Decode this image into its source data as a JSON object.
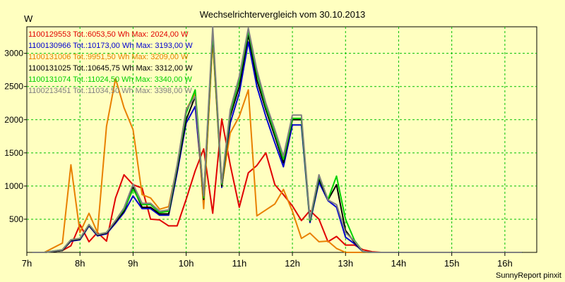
{
  "chart_data": {
    "type": "line",
    "title": "Wechselrichtervergleich vom 30.10.2013",
    "ylabel": "W",
    "xlabel": "",
    "xlim": [
      7,
      16.6
    ],
    "ylim": [
      0,
      3400
    ],
    "yticks": [
      500,
      1000,
      1500,
      2000,
      2500,
      3000
    ],
    "xticks": [
      7,
      8,
      9,
      10,
      11,
      12,
      13,
      14,
      15,
      16
    ],
    "xtick_labels": [
      "7h",
      "8h",
      "9h",
      "10h",
      "11h",
      "12h",
      "13h",
      "14h",
      "15h",
      "16h"
    ],
    "grid": true,
    "legend_position": "top-left",
    "credit": "SunnyReport pinxit",
    "series": [
      {
        "name": "1100129553 Tot.:6053,50 Wh Max: 2024,00 W",
        "color": "#e00000",
        "x": [
          7.1,
          7.33,
          7.67,
          7.83,
          8.0,
          8.17,
          8.33,
          8.5,
          8.67,
          8.83,
          9.0,
          9.17,
          9.33,
          9.5,
          9.67,
          9.83,
          10.0,
          10.17,
          10.33,
          10.5,
          10.67,
          10.83,
          11.0,
          11.17,
          11.33,
          11.5,
          11.67,
          11.83,
          12.0,
          12.17,
          12.33,
          12.5,
          12.67,
          12.83,
          13.0,
          13.17,
          13.33,
          13.5,
          13.67,
          13.83,
          14.0,
          14.17,
          14.33,
          14.5,
          14.67,
          14.83,
          15.0,
          15.17,
          15.33,
          15.5,
          15.67,
          15.83,
          16.0,
          16.17,
          16.33
        ],
        "y": [
          0,
          0,
          30,
          100,
          420,
          160,
          300,
          170,
          820,
          1170,
          1020,
          970,
          500,
          490,
          400,
          400,
          800,
          1230,
          1560,
          590,
          2010,
          1320,
          680,
          1200,
          1310,
          1500,
          1020,
          870,
          700,
          480,
          630,
          500,
          160,
          240,
          110,
          110,
          40,
          10,
          0,
          0,
          0,
          0,
          0,
          0,
          0,
          0,
          0,
          0,
          0,
          0,
          0,
          0,
          0,
          0,
          0
        ]
      },
      {
        "name": "1100130966 Tot.:10173,00 Wh Max: 3193,00 W",
        "color": "#0000d0",
        "x": [
          7.1,
          7.33,
          7.67,
          7.83,
          8.0,
          8.17,
          8.33,
          8.5,
          8.67,
          8.83,
          9.0,
          9.17,
          9.33,
          9.5,
          9.67,
          9.83,
          10.0,
          10.17,
          10.33,
          10.5,
          10.67,
          10.83,
          11.0,
          11.17,
          11.33,
          11.5,
          11.67,
          11.83,
          12.0,
          12.17,
          12.33,
          12.5,
          12.67,
          12.83,
          13.0,
          13.17,
          13.33,
          13.5,
          13.67,
          13.83,
          14.0,
          14.17,
          14.33,
          14.5,
          14.67,
          14.83,
          15.0,
          15.17,
          15.33,
          15.5,
          15.67,
          15.83,
          16.0,
          16.17,
          16.33
        ],
        "y": [
          0,
          0,
          30,
          170,
          190,
          400,
          250,
          280,
          440,
          600,
          850,
          660,
          660,
          560,
          560,
          1200,
          1950,
          2200,
          790,
          3250,
          980,
          1950,
          2400,
          3170,
          2500,
          2050,
          1650,
          1290,
          1920,
          1920,
          450,
          1060,
          780,
          680,
          230,
          130,
          10,
          0,
          0,
          0,
          0,
          0,
          0,
          0,
          0,
          0,
          0,
          0,
          0,
          0,
          0,
          0,
          0,
          0,
          0
        ]
      },
      {
        "name": "1100131006 Tot.:9951,50 Wh Max: 3209,00 W",
        "color": "#e88000",
        "x": [
          7.1,
          7.33,
          7.67,
          7.83,
          8.0,
          8.17,
          8.33,
          8.5,
          8.67,
          8.83,
          9.0,
          9.17,
          9.33,
          9.5,
          9.67,
          9.83,
          10.0,
          10.17,
          10.33,
          10.5,
          10.67,
          10.83,
          11.0,
          11.17,
          11.33,
          11.5,
          11.67,
          11.83,
          12.0,
          12.17,
          12.33,
          12.5,
          12.67,
          12.83,
          13.0,
          13.17,
          13.33,
          13.5,
          13.67,
          13.83,
          14.0,
          14.17,
          14.33,
          14.5,
          14.67,
          14.83,
          15.0,
          15.17,
          15.33,
          15.5,
          15.67,
          15.83,
          16.0,
          16.17,
          16.33
        ],
        "y": [
          0,
          0,
          140,
          1320,
          300,
          590,
          300,
          1900,
          2620,
          2180,
          1850,
          870,
          820,
          650,
          690,
          1300,
          2150,
          2400,
          660,
          3200,
          1000,
          1800,
          2050,
          2450,
          550,
          640,
          730,
          950,
          620,
          210,
          290,
          160,
          170,
          60,
          0,
          0,
          0,
          0,
          0,
          0,
          0,
          0,
          0,
          0,
          0,
          0,
          0,
          0,
          0,
          0,
          0,
          0,
          0,
          0,
          0
        ]
      },
      {
        "name": "1100131025 Tot.:10645,75 Wh Max: 3312,00 W",
        "color": "#000000",
        "x": [
          7.1,
          7.33,
          7.67,
          7.83,
          8.0,
          8.17,
          8.33,
          8.5,
          8.67,
          8.83,
          9.0,
          9.17,
          9.33,
          9.5,
          9.67,
          9.83,
          10.0,
          10.17,
          10.33,
          10.5,
          10.67,
          10.83,
          11.0,
          11.17,
          11.33,
          11.5,
          11.67,
          11.83,
          12.0,
          12.17,
          12.33,
          12.5,
          12.67,
          12.83,
          13.0,
          13.17,
          13.33,
          13.5,
          13.67,
          13.83,
          14.0,
          14.17,
          14.33,
          14.5,
          14.67,
          14.83,
          15.0,
          15.17,
          15.33,
          15.5,
          15.67,
          15.83,
          16.0,
          16.17,
          16.33
        ],
        "y": [
          0,
          0,
          30,
          180,
          200,
          410,
          260,
          290,
          460,
          620,
          980,
          680,
          680,
          580,
          580,
          1250,
          2000,
          2350,
          800,
          3300,
          1000,
          2050,
          2500,
          3280,
          2600,
          2150,
          1750,
          1350,
          2000,
          2000,
          470,
          1110,
          790,
          1020,
          330,
          150,
          10,
          0,
          0,
          0,
          0,
          0,
          0,
          0,
          0,
          0,
          0,
          0,
          0,
          0,
          0,
          0,
          0,
          0,
          0
        ]
      },
      {
        "name": "1100131074 Tot.:11024,50 Wh Max: 3340,00 W",
        "color": "#00d000",
        "x": [
          7.1,
          7.33,
          7.67,
          7.83,
          8.0,
          8.17,
          8.33,
          8.5,
          8.67,
          8.83,
          9.0,
          9.17,
          9.33,
          9.5,
          9.67,
          9.83,
          10.0,
          10.17,
          10.33,
          10.5,
          10.67,
          10.83,
          11.0,
          11.17,
          11.33,
          11.5,
          11.67,
          11.83,
          12.0,
          12.17,
          12.33,
          12.5,
          12.67,
          12.83,
          13.0,
          13.17,
          13.33,
          13.5,
          13.67,
          13.83,
          14.0,
          14.17,
          14.33,
          14.5,
          14.67,
          14.83,
          15.0,
          15.17,
          15.33,
          15.5,
          15.67,
          15.83,
          16.0,
          16.17,
          16.33
        ],
        "y": [
          0,
          0,
          40,
          190,
          210,
          420,
          270,
          300,
          480,
          650,
          950,
          720,
          720,
          600,
          620,
          1300,
          2100,
          2450,
          820,
          3330,
          1030,
          2100,
          2600,
          3340,
          2700,
          2200,
          1800,
          1400,
          2020,
          2020,
          480,
          1150,
          800,
          1150,
          500,
          180,
          10,
          0,
          0,
          0,
          0,
          0,
          0,
          0,
          0,
          0,
          0,
          0,
          0,
          0,
          0,
          0,
          0,
          0,
          0
        ]
      },
      {
        "name": "1100213451 Tot.:11034,50 Wh Max: 3398,00 W",
        "color": "#808080",
        "x": [
          7.1,
          7.33,
          7.67,
          7.83,
          8.0,
          8.17,
          8.33,
          8.5,
          8.67,
          8.83,
          9.0,
          9.17,
          9.33,
          9.5,
          9.67,
          9.83,
          10.0,
          10.17,
          10.33,
          10.5,
          10.67,
          10.83,
          11.0,
          11.17,
          11.33,
          11.5,
          11.67,
          11.83,
          12.0,
          12.17,
          12.33,
          12.5,
          12.67,
          12.83,
          13.0,
          13.17,
          13.33,
          13.5,
          13.67,
          13.83,
          14.0,
          14.17,
          14.33,
          14.5,
          14.67,
          14.83,
          15.0,
          15.17,
          15.33,
          15.5,
          15.67,
          15.83,
          16.0,
          16.17,
          16.33
        ],
        "y": [
          0,
          0,
          40,
          190,
          210,
          420,
          270,
          300,
          480,
          670,
          1030,
          740,
          740,
          620,
          640,
          1320,
          2150,
          2350,
          850,
          3400,
          1050,
          2150,
          2650,
          3380,
          2750,
          2250,
          1850,
          1450,
          2070,
          2070,
          500,
          1170,
          790,
          720,
          300,
          170,
          10,
          0,
          0,
          0,
          0,
          0,
          0,
          0,
          0,
          0,
          0,
          0,
          0,
          0,
          0,
          0,
          0,
          0,
          0
        ]
      }
    ]
  }
}
